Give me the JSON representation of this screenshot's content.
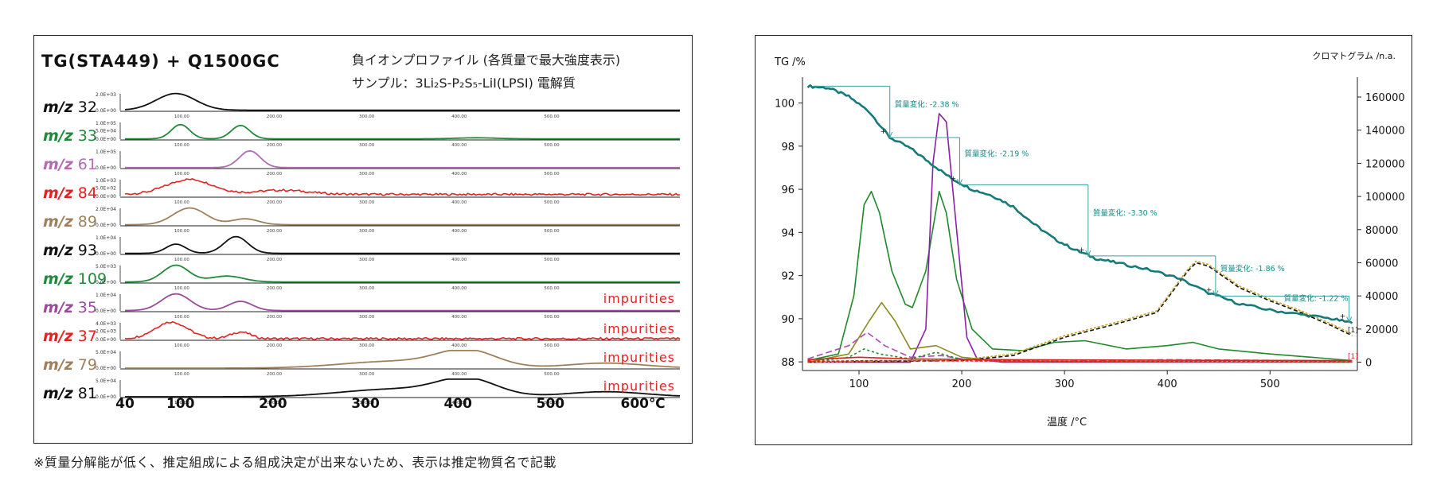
{
  "footnote": "※質量分解能が低く、推定組成による組成決定が出来ないため、表示は推定物質名で記載",
  "chart_data": [
    {
      "type": "line",
      "title": "TG(STA449) + Q1500GC",
      "subtitle_line1": "負イオンプロファイル (各質量で最大強度表示)",
      "subtitle_line2": "サンプル：3Li₂S-P₂S₅-LiI(LPSI) 電解質",
      "x_ticks_main": [
        "40",
        "100",
        "200",
        "300",
        "400",
        "500",
        "600℃"
      ],
      "x_ticks_small": [
        "100.00",
        "200.00",
        "300.00",
        "400.00",
        "500.00"
      ],
      "xlim": [
        40,
        640
      ],
      "series": [
        {
          "name": "m/z 32",
          "color": "#111111",
          "ymax": "2.0E+03",
          "ymid": "",
          "ymin": "0.0E+00",
          "note": "",
          "peaks": [
            [
              95,
              1.0,
              30
            ]
          ],
          "baseline": 0.02
        },
        {
          "name": "m/z 33",
          "color": "#1f8a3a",
          "ymax": "1.0E+05",
          "ymid": "5.0E+04",
          "ymin": "0.0E+00",
          "note": "",
          "peaks": [
            [
              100,
              0.85,
              14
            ],
            [
              165,
              0.8,
              14
            ],
            [
              420,
              0.06,
              30
            ]
          ],
          "baseline": 0.02
        },
        {
          "name": "m/z 61",
          "color": "#b36bb3",
          "ymax": "1.0E+05",
          "ymid": "",
          "ymin": "0.0E+00",
          "note": "",
          "peaks": [
            [
              175,
              1.0,
              16
            ]
          ],
          "baseline": 0.01
        },
        {
          "name": "m/z 84",
          "color": "#e82020",
          "ymax": "1.0E+03",
          "ymid": "5.0E+02",
          "ymin": "0.0E+00",
          "note": "",
          "peaks": [
            [
              110,
              0.9,
              35
            ],
            [
              210,
              0.25,
              40
            ]
          ],
          "baseline": 0.12
        },
        {
          "name": "m/z 89",
          "color": "#a0805a",
          "ymax": "2.0E+04",
          "ymid": "",
          "ymin": "0.0E+00",
          "note": "",
          "peaks": [
            [
              110,
              1.0,
              25
            ],
            [
              170,
              0.35,
              20
            ]
          ],
          "baseline": 0.02
        },
        {
          "name": "m/z 93",
          "color": "#111111",
          "ymax": "1.0E+04",
          "ymid": "",
          "ymin": "0.0E+00",
          "note": "",
          "peaks": [
            [
              95,
              0.55,
              15
            ],
            [
              160,
              1.0,
              18
            ]
          ],
          "baseline": 0.02
        },
        {
          "name": "m/z 109",
          "color": "#1f8a3a",
          "ymax": "5.0E+03",
          "ymid": "",
          "ymin": "0.0E+00",
          "note": "",
          "peaks": [
            [
              95,
              1.0,
              20
            ],
            [
              150,
              0.35,
              25
            ]
          ],
          "baseline": 0.02
        },
        {
          "name": "m/z 35",
          "color": "#9c4a9c",
          "ymax": "1.0E+04",
          "ymid": "",
          "ymin": "0.0E+00",
          "note": "impurities",
          "peaks": [
            [
              95,
              1.0,
              22
            ],
            [
              165,
              0.55,
              18
            ]
          ],
          "baseline": 0.02
        },
        {
          "name": "m/z 37",
          "color": "#e82020",
          "ymax": "4.0E+03",
          "ymid": "2.0E+03",
          "ymin": "0.0E+00",
          "note": "impurities",
          "peaks": [
            [
              90,
              1.0,
              25
            ],
            [
              165,
              0.4,
              15
            ]
          ],
          "baseline": 0.05
        },
        {
          "name": "m/z 79",
          "color": "#a0805a",
          "ymax": "5.0E+04",
          "ymid": "",
          "ymin": "0.0E+00",
          "note": "impurities",
          "peaks": [
            [
              330,
              0.4,
              80
            ],
            [
              410,
              1.0,
              45
            ],
            [
              560,
              0.3,
              60
            ]
          ],
          "baseline": 0.0
        },
        {
          "name": "m/z 81",
          "color": "#111111",
          "ymax": "5.0E+04",
          "ymid": "",
          "ymin": "0.0E+00",
          "note": "impurities",
          "peaks": [
            [
              330,
              0.45,
              80
            ],
            [
              410,
              1.0,
              45
            ],
            [
              560,
              0.3,
              60
            ]
          ],
          "baseline": 0.0
        }
      ]
    },
    {
      "type": "line",
      "ylabel": "TG /%",
      "y2label": "クロマトグラム /n.a.",
      "xlabel": "温度 /°C",
      "xlim": [
        45,
        585
      ],
      "ylim": [
        87.6,
        101.2
      ],
      "y2lim": [
        -5000,
        172000
      ],
      "x_ticks": [
        100,
        200,
        300,
        400,
        500
      ],
      "y_ticks": [
        88,
        90,
        92,
        94,
        96,
        98,
        100
      ],
      "y2_ticks": [
        0,
        20000,
        40000,
        60000,
        80000,
        100000,
        120000,
        140000,
        160000
      ],
      "y2_tick_labels": [
        "0",
        "20000",
        "40000",
        "60000",
        "80000",
        "100000",
        "120000",
        "140000",
        "160000"
      ],
      "mass_changes": [
        {
          "label": "質量変化: -2.38 %",
          "x": 130,
          "from": 100.78,
          "to": 98.4
        },
        {
          "label": "質量変化: -2.19 %",
          "x": 198,
          "from": 98.4,
          "to": 96.21
        },
        {
          "label": "質量変化: -3.30 %",
          "x": 323,
          "from": 96.21,
          "to": 92.91
        },
        {
          "label": "質量変化: -1.86 %",
          "x": 447,
          "from": 92.91,
          "to": 91.05
        },
        {
          "label": "質量変化: -1.22 %",
          "x": 577,
          "from": 91.05,
          "to": 89.83
        }
      ],
      "tg_curve": [
        [
          50,
          100.78
        ],
        [
          70,
          100.7
        ],
        [
          90,
          100.3
        ],
        [
          110,
          99.6
        ],
        [
          130,
          98.4
        ],
        [
          150,
          97.9
        ],
        [
          170,
          97.2
        ],
        [
          190,
          96.5
        ],
        [
          210,
          96.0
        ],
        [
          230,
          95.7
        ],
        [
          250,
          95.2
        ],
        [
          270,
          94.4
        ],
        [
          290,
          93.7
        ],
        [
          310,
          93.2
        ],
        [
          330,
          92.8
        ],
        [
          350,
          92.6
        ],
        [
          380,
          92.3
        ],
        [
          410,
          91.9
        ],
        [
          440,
          91.2
        ],
        [
          470,
          90.7
        ],
        [
          500,
          90.4
        ],
        [
          530,
          90.2
        ],
        [
          560,
          90.0
        ],
        [
          580,
          89.8
        ]
      ],
      "series": [
        {
          "color": "#1f8a2a",
          "dash": "",
          "points": [
            [
              50,
              1000
            ],
            [
              80,
              5000
            ],
            [
              95,
              40000
            ],
            [
              105,
              95000
            ],
            [
              112,
              103000
            ],
            [
              120,
              90000
            ],
            [
              132,
              55000
            ],
            [
              145,
              35000
            ],
            [
              152,
              33000
            ],
            [
              165,
              55000
            ],
            [
              178,
              103000
            ],
            [
              185,
              90000
            ],
            [
              195,
              50000
            ],
            [
              210,
              20000
            ],
            [
              230,
              8000
            ],
            [
              260,
              7000
            ],
            [
              290,
              12000
            ],
            [
              320,
              13000
            ],
            [
              360,
              8000
            ],
            [
              400,
              10000
            ],
            [
              425,
              12000
            ],
            [
              450,
              8000
            ],
            [
              500,
              5000
            ],
            [
              540,
              3000
            ],
            [
              580,
              1000
            ]
          ]
        },
        {
          "color": "#8a1fa8",
          "dash": "",
          "points": [
            [
              50,
              0
            ],
            [
              150,
              0
            ],
            [
              165,
              20000
            ],
            [
              172,
              120000
            ],
            [
              178,
              150000
            ],
            [
              185,
              145000
            ],
            [
              195,
              80000
            ],
            [
              205,
              15000
            ],
            [
              215,
              2000
            ],
            [
              240,
              0
            ],
            [
              580,
              0
            ]
          ]
        },
        {
          "color": "#8a8a1f",
          "dash": "",
          "points": [
            [
              50,
              0
            ],
            [
              90,
              5000
            ],
            [
              110,
              25000
            ],
            [
              122,
              36000
            ],
            [
              135,
              25000
            ],
            [
              150,
              8000
            ],
            [
              175,
              10000
            ],
            [
              200,
              3000
            ],
            [
              240,
              500
            ],
            [
              580,
              0
            ]
          ]
        },
        {
          "color": "#111111",
          "dash": "5,3",
          "points": [
            [
              50,
              0
            ],
            [
              200,
              1000
            ],
            [
              250,
              4000
            ],
            [
              300,
              15000
            ],
            [
              350,
              23000
            ],
            [
              390,
              30000
            ],
            [
              420,
              55000
            ],
            [
              428,
              60000
            ],
            [
              440,
              58000
            ],
            [
              470,
              45000
            ],
            [
              500,
              37000
            ],
            [
              530,
              30000
            ],
            [
              560,
              22000
            ],
            [
              580,
              16000
            ]
          ]
        },
        {
          "color": "#c9a020",
          "dash": "3,2",
          "points": [
            [
              50,
              0
            ],
            [
              200,
              1500
            ],
            [
              250,
              5000
            ],
            [
              300,
              16000
            ],
            [
              350,
              24000
            ],
            [
              390,
              31000
            ],
            [
              420,
              56000
            ],
            [
              428,
              61000
            ],
            [
              440,
              59000
            ],
            [
              470,
              46000
            ],
            [
              500,
              38000
            ],
            [
              530,
              31000
            ],
            [
              560,
              23000
            ],
            [
              580,
              17000
            ]
          ]
        },
        {
          "color": "#b04ab0",
          "dash": "8,4",
          "points": [
            [
              50,
              2000
            ],
            [
              90,
              10000
            ],
            [
              108,
              18000
            ],
            [
              125,
              10000
            ],
            [
              150,
              3000
            ],
            [
              180,
              4000
            ],
            [
              210,
              1000
            ],
            [
              300,
              500
            ],
            [
              400,
              1500
            ],
            [
              580,
              800
            ]
          ]
        },
        {
          "color": "#1f8a2a",
          "dash": "3,3",
          "points": [
            [
              50,
              0
            ],
            [
              90,
              3000
            ],
            [
              105,
              8000
            ],
            [
              120,
              5000
            ],
            [
              150,
              2000
            ],
            [
              175,
              6000
            ],
            [
              200,
              1500
            ],
            [
              300,
              500
            ],
            [
              580,
              0
            ]
          ]
        },
        {
          "color": "#e02020",
          "dash": "",
          "points": [
            [
              50,
              1500
            ],
            [
              100,
              3000
            ],
            [
              150,
              2000
            ],
            [
              250,
              1500
            ],
            [
              400,
              1200
            ],
            [
              580,
              1000
            ]
          ]
        },
        {
          "color": "#e02020",
          "dash": "4,2",
          "points": [
            [
              50,
              500
            ],
            [
              120,
              1000
            ],
            [
              300,
              500
            ],
            [
              580,
              500
            ]
          ]
        }
      ],
      "end_markers": [
        "[1]",
        "[1]"
      ]
    }
  ]
}
